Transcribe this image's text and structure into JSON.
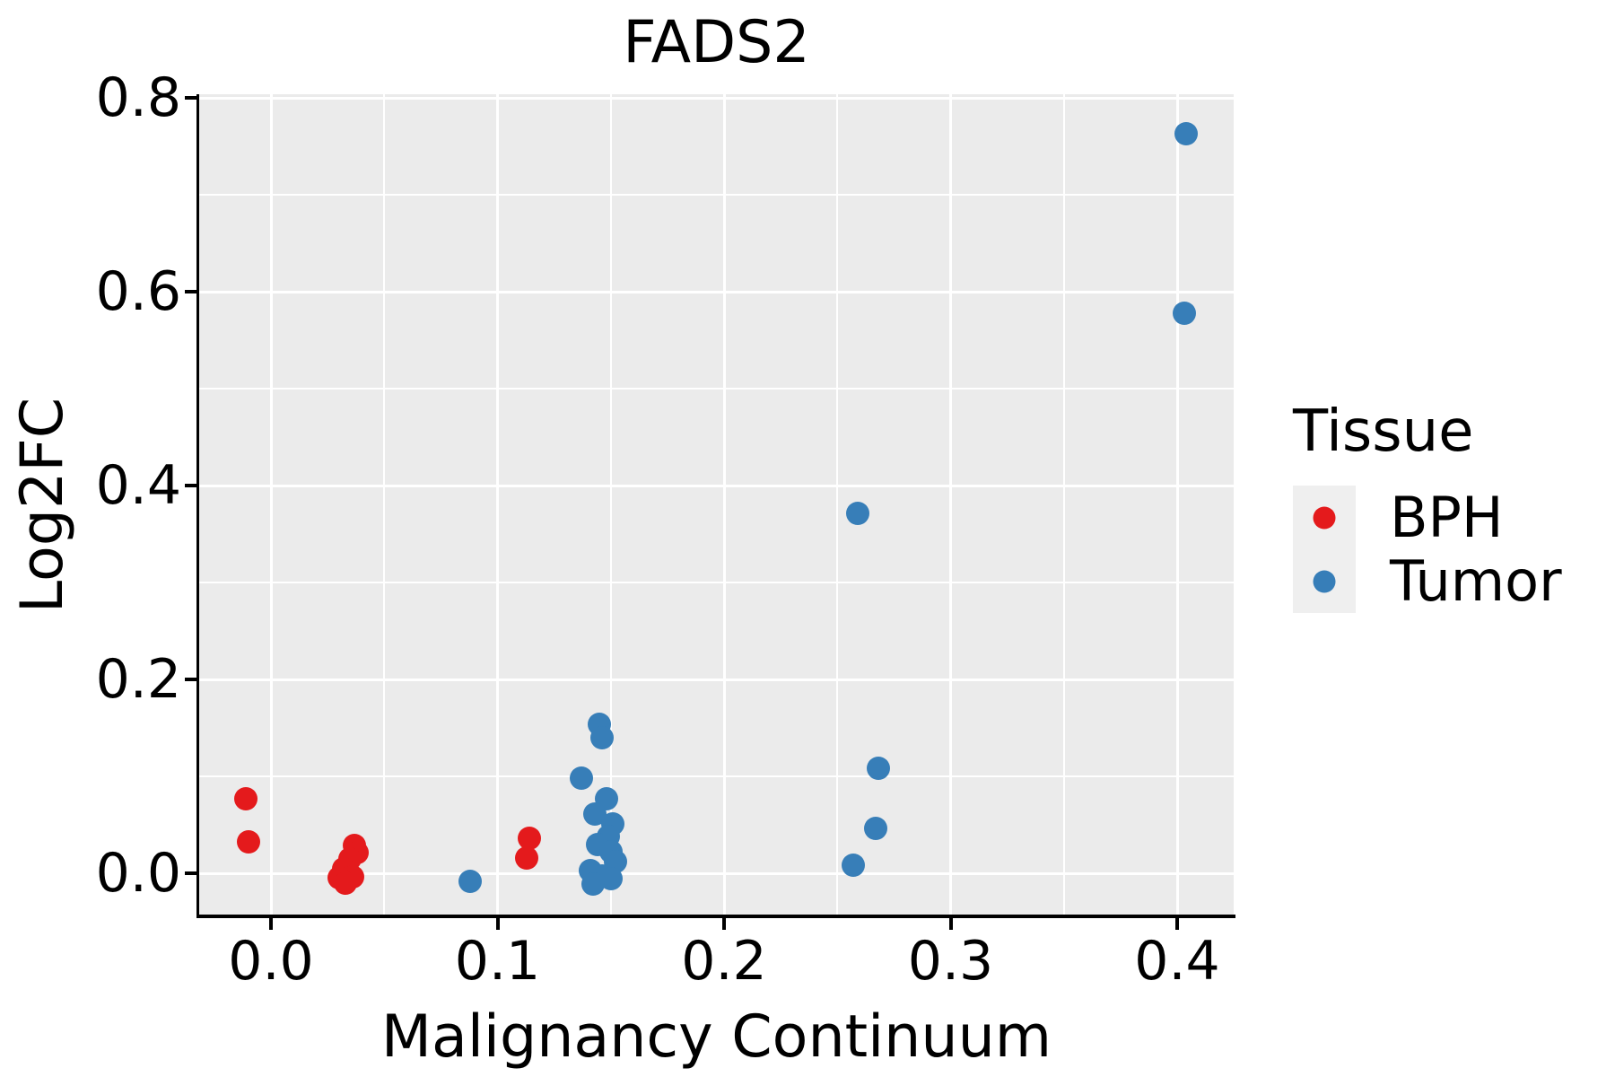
{
  "title": "FADS2",
  "chart_data": {
    "type": "scatter",
    "title": "FADS2",
    "xlabel": "Malignancy Continuum",
    "ylabel": "Log2FC",
    "xlim": [
      -0.032,
      0.425
    ],
    "ylim": [
      -0.045,
      0.803
    ],
    "grid": true,
    "panel_background": "#EBEBEB",
    "gridline_color": "#ffffff",
    "x_ticks": [
      0.0,
      0.1,
      0.2,
      0.3,
      0.4
    ],
    "x_tick_labels": [
      "0.0",
      "0.1",
      "0.2",
      "0.3",
      "0.4"
    ],
    "x_minor_ticks": [
      0.05,
      0.15,
      0.25,
      0.35
    ],
    "y_ticks": [
      0.0,
      0.2,
      0.4,
      0.6,
      0.8
    ],
    "y_tick_labels": [
      "0.0",
      "0.2",
      "0.4",
      "0.6",
      "0.8"
    ],
    "y_minor_ticks": [
      0.1,
      0.3,
      0.5,
      0.7
    ],
    "legend_position": "right",
    "series": [
      {
        "name": "BPH",
        "color": "#E41A1C",
        "points": [
          [
            -0.011,
            0.077
          ],
          [
            -0.01,
            0.032
          ],
          [
            0.037,
            0.029
          ],
          [
            0.038,
            0.021
          ],
          [
            0.035,
            0.015
          ],
          [
            0.032,
            0.005
          ],
          [
            0.036,
            -0.004
          ],
          [
            0.03,
            -0.005
          ],
          [
            0.033,
            -0.01
          ],
          [
            0.114,
            0.036
          ],
          [
            0.113,
            0.016
          ]
        ]
      },
      {
        "name": "Tumor",
        "color": "#377EB8",
        "points": [
          [
            0.088,
            -0.008
          ],
          [
            0.145,
            0.154
          ],
          [
            0.146,
            0.14
          ],
          [
            0.137,
            0.098
          ],
          [
            0.148,
            0.077
          ],
          [
            0.143,
            0.061
          ],
          [
            0.151,
            0.051
          ],
          [
            0.149,
            0.038
          ],
          [
            0.144,
            0.03
          ],
          [
            0.15,
            0.022
          ],
          [
            0.152,
            0.012
          ],
          [
            0.141,
            0.003
          ],
          [
            0.146,
            -0.003
          ],
          [
            0.15,
            -0.006
          ],
          [
            0.142,
            -0.011
          ],
          [
            0.257,
            0.008
          ],
          [
            0.268,
            0.108
          ],
          [
            0.267,
            0.046
          ],
          [
            0.259,
            0.371
          ],
          [
            0.404,
            0.763
          ],
          [
            0.403,
            0.578
          ]
        ]
      }
    ]
  },
  "legend": {
    "title": "Tissue",
    "items": [
      {
        "label": "BPH",
        "color": "#E41A1C"
      },
      {
        "label": "Tumor",
        "color": "#377EB8"
      }
    ]
  },
  "colors": {
    "bph": "#E41A1C",
    "tumor": "#377EB8",
    "panel": "#EBEBEB",
    "grid": "#ffffff",
    "axis": "#000000"
  }
}
